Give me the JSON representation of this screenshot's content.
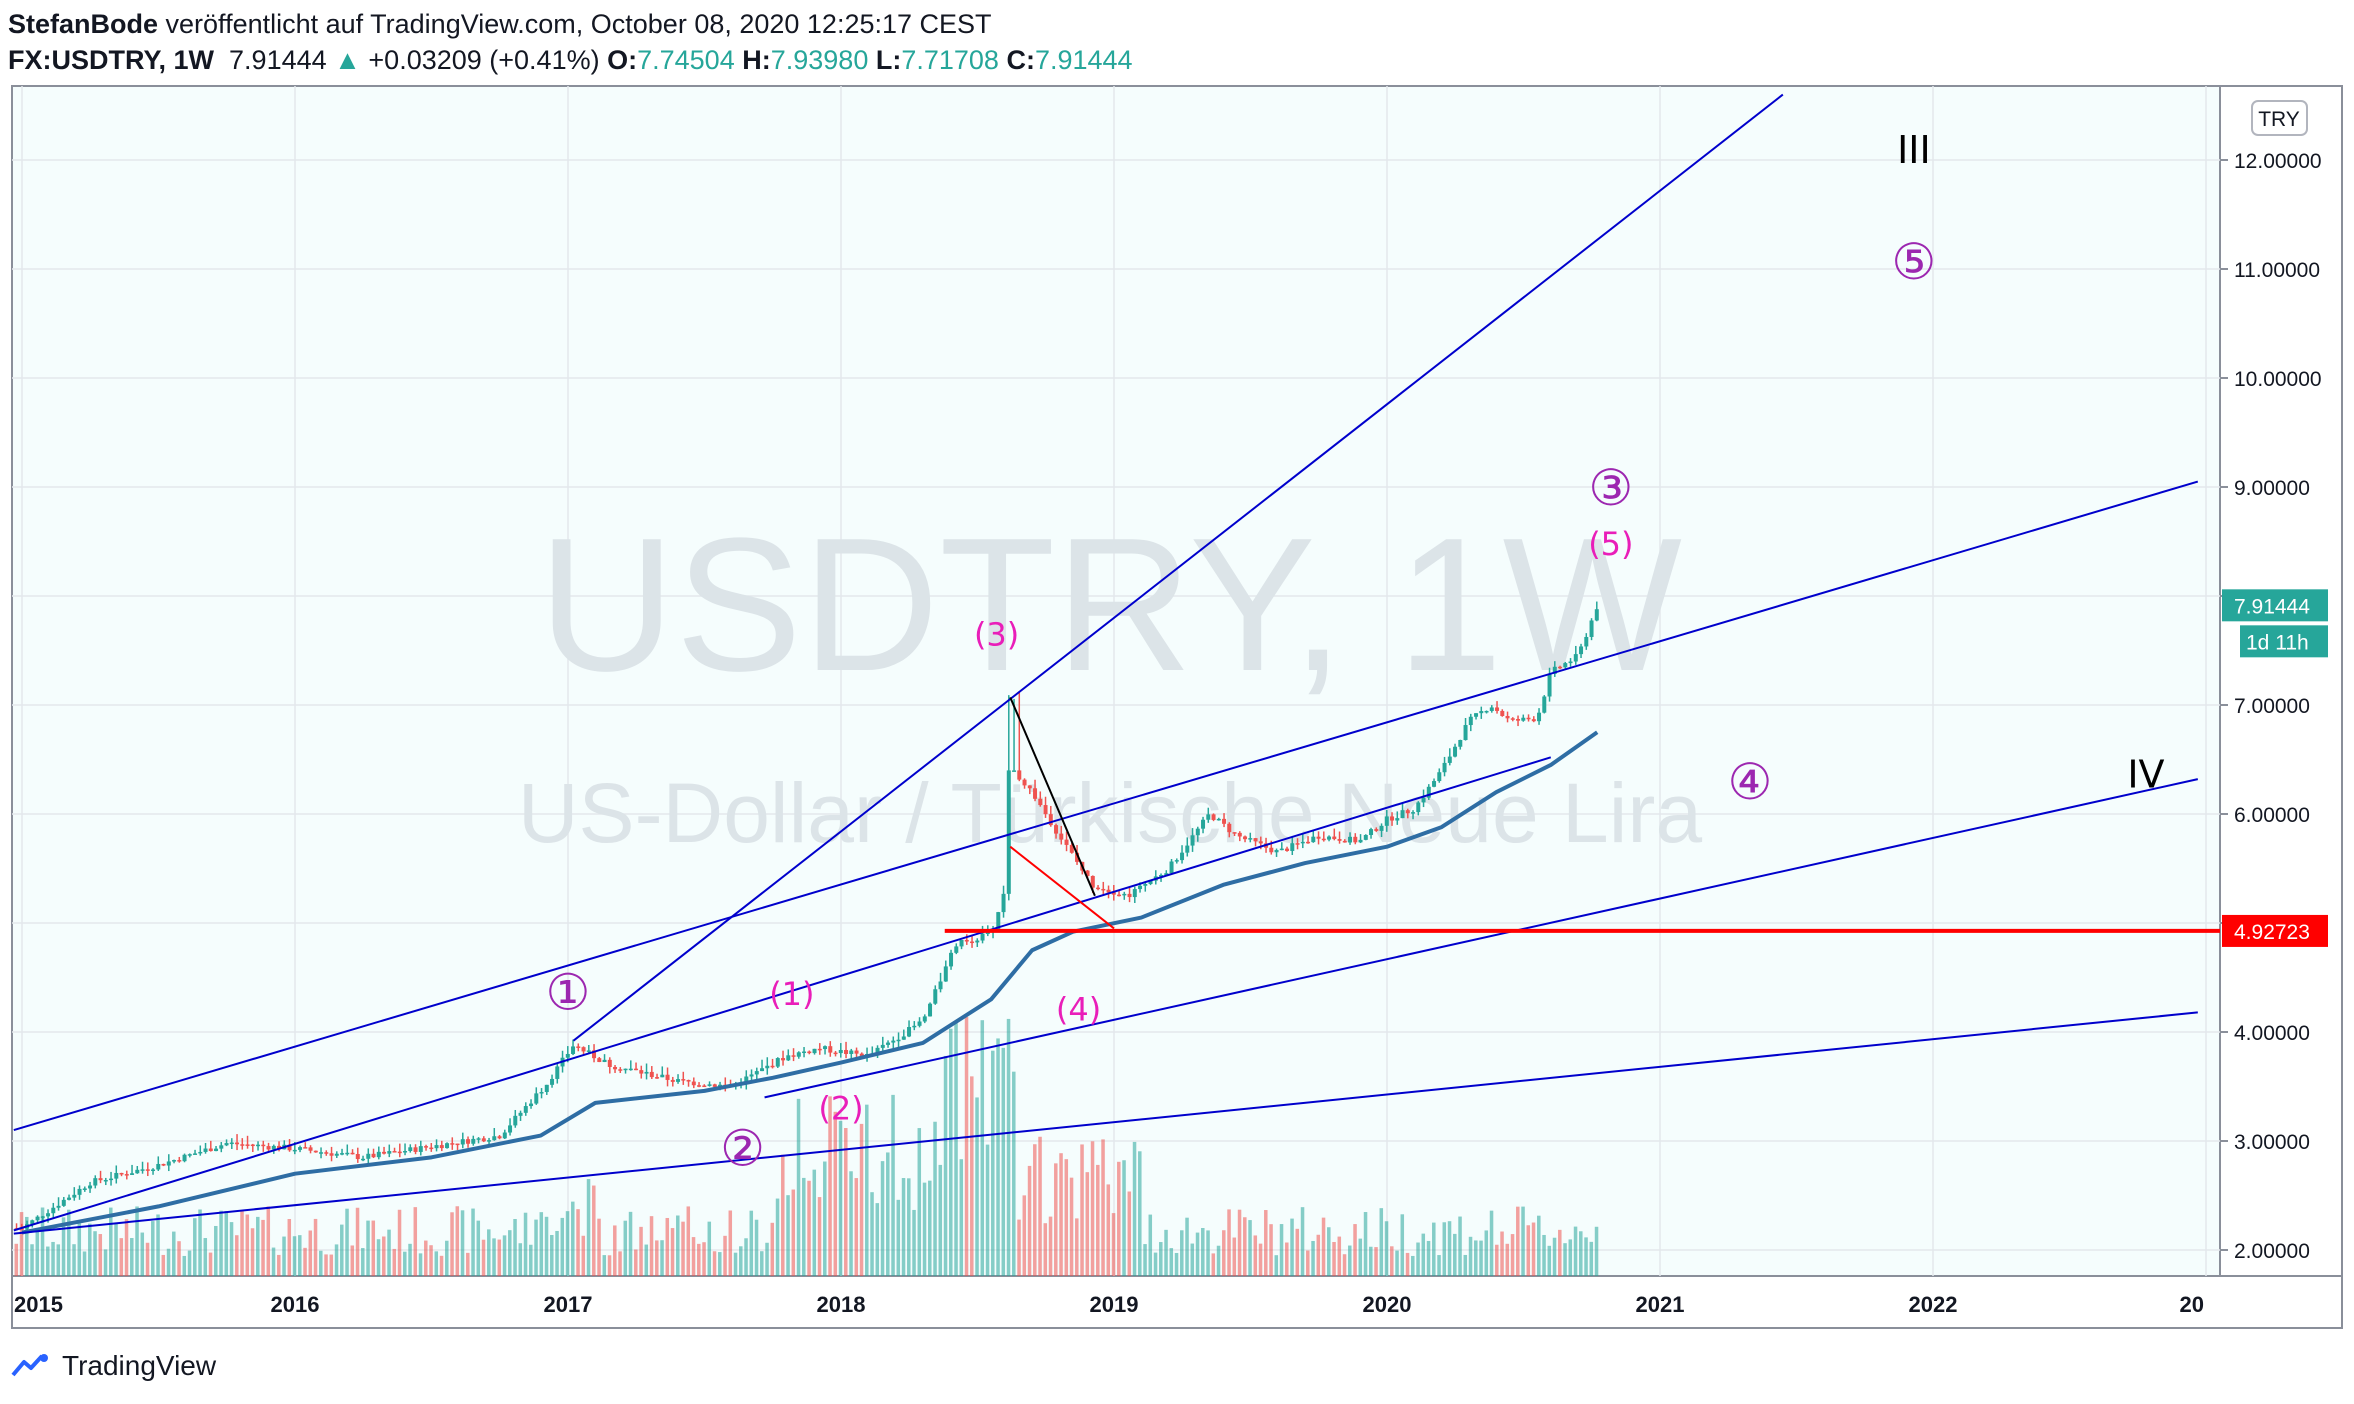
{
  "header": {
    "author": "StefanBode",
    "published": " veröffentlicht auf TradingView.com, October 08, 2020 12:25:17 CEST",
    "symbol": "FX:USDTRY, 1W",
    "last": "7.91444",
    "change": "+0.03209 (+0.41%)",
    "o_label": "O:",
    "o_value": "7.74504",
    "h_label": "H:",
    "h_value": "7.93980",
    "l_label": "L:",
    "l_value": "7.71708",
    "c_label": "C:",
    "c_value": "7.91444"
  },
  "watermark": {
    "line1": "USDTRY, 1W",
    "line2": "US-Dollar / Türkische Neue Lira"
  },
  "currency_badge": "TRY",
  "price_tag": {
    "value": "7.91444",
    "countdown": "1d 11h",
    "color": "#26a69a"
  },
  "level_tag": {
    "value": "4.92723",
    "color": "#ff0000"
  },
  "footer": {
    "brand": "TradingView"
  },
  "colors": {
    "up": "#26a69a",
    "down": "#ef5350",
    "ma": "#2e6da4",
    "trend": "#0000cc",
    "background": "#f5fdfd",
    "wave_primary": "#9c27b0",
    "wave_minor": "#e91eb9"
  },
  "chart_data": {
    "type": "candlestick",
    "title": "USDTRY, 1W",
    "x_ticks": [
      "2015",
      "2016",
      "2017",
      "2018",
      "2019",
      "2020",
      "2021",
      "2022",
      "20"
    ],
    "y_ticks": [
      "2.00000",
      "3.00000",
      "4.00000",
      "5.00000",
      "6.00000",
      "7.00000",
      "8.00000",
      "9.00000",
      "10.00000",
      "11.00000",
      "12.00000"
    ],
    "ylim": [
      1.8,
      12.6
    ],
    "grid": true,
    "price_path": [
      [
        2015.0,
        2.2
      ],
      [
        2015.25,
        2.62
      ],
      [
        2015.5,
        2.78
      ],
      [
        2015.75,
        2.98
      ],
      [
        2016.0,
        2.93
      ],
      [
        2016.25,
        2.85
      ],
      [
        2016.5,
        2.95
      ],
      [
        2016.75,
        3.05
      ],
      [
        2016.92,
        3.52
      ],
      [
        2017.02,
        3.88
      ],
      [
        2017.15,
        3.7
      ],
      [
        2017.4,
        3.55
      ],
      [
        2017.6,
        3.5
      ],
      [
        2017.8,
        3.78
      ],
      [
        2017.92,
        3.85
      ],
      [
        2018.1,
        3.78
      ],
      [
        2018.3,
        4.1
      ],
      [
        2018.42,
        4.8
      ],
      [
        2018.55,
        4.9
      ],
      [
        2018.6,
        5.3
      ],
      [
        2018.63,
        6.4
      ],
      [
        2018.7,
        6.2
      ],
      [
        2018.8,
        5.8
      ],
      [
        2018.92,
        5.35
      ],
      [
        2019.05,
        5.25
      ],
      [
        2019.2,
        5.5
      ],
      [
        2019.35,
        6.0
      ],
      [
        2019.45,
        5.8
      ],
      [
        2019.6,
        5.65
      ],
      [
        2019.75,
        5.8
      ],
      [
        2019.9,
        5.75
      ],
      [
        2020.0,
        5.95
      ],
      [
        2020.1,
        6.05
      ],
      [
        2020.2,
        6.4
      ],
      [
        2020.3,
        6.85
      ],
      [
        2020.38,
        7.0
      ],
      [
        2020.45,
        6.85
      ],
      [
        2020.55,
        6.88
      ],
      [
        2020.6,
        7.3
      ],
      [
        2020.7,
        7.45
      ],
      [
        2020.77,
        7.91
      ]
    ],
    "moving_average": [
      [
        2015.0,
        2.16
      ],
      [
        2015.5,
        2.4
      ],
      [
        2016.0,
        2.7
      ],
      [
        2016.5,
        2.85
      ],
      [
        2016.9,
        3.05
      ],
      [
        2017.1,
        3.35
      ],
      [
        2017.5,
        3.46
      ],
      [
        2017.75,
        3.58
      ],
      [
        2018.0,
        3.72
      ],
      [
        2018.3,
        3.9
      ],
      [
        2018.55,
        4.3
      ],
      [
        2018.7,
        4.75
      ],
      [
        2018.85,
        4.92
      ],
      [
        2019.1,
        5.05
      ],
      [
        2019.4,
        5.35
      ],
      [
        2019.7,
        5.55
      ],
      [
        2020.0,
        5.7
      ],
      [
        2020.2,
        5.88
      ],
      [
        2020.4,
        6.2
      ],
      [
        2020.6,
        6.45
      ],
      [
        2020.77,
        6.75
      ]
    ],
    "trend_lines": [
      [
        [
          2014.97,
          3.1
        ],
        [
          2022.97,
          9.05
        ]
      ],
      [
        [
          2014.97,
          2.15
        ],
        [
          2022.97,
          4.18
        ]
      ],
      [
        [
          2017.02,
          3.92
        ],
        [
          2021.45,
          12.6
        ]
      ],
      [
        [
          2017.72,
          3.4
        ],
        [
          2022.97,
          6.32
        ]
      ],
      [
        [
          2014.97,
          2.18
        ],
        [
          2020.6,
          6.52
        ]
      ]
    ],
    "horizontal_level": {
      "value": 4.92723,
      "from": 2018.38
    },
    "black_line": [
      [
        2018.62,
        7.07
      ],
      [
        2018.93,
        5.25
      ]
    ],
    "red_line": [
      [
        2018.62,
        5.7
      ],
      [
        2019.0,
        4.95
      ]
    ],
    "labels": [
      {
        "text": "①",
        "x": 2017.0,
        "y": 4.33,
        "kind": "primary"
      },
      {
        "text": "②",
        "x": 2017.64,
        "y": 2.9,
        "kind": "primary"
      },
      {
        "text": "③",
        "x": 2020.82,
        "y": 8.96,
        "kind": "primary"
      },
      {
        "text": "④",
        "x": 2021.33,
        "y": 6.26,
        "kind": "primary"
      },
      {
        "text": "⑤",
        "x": 2021.93,
        "y": 11.03,
        "kind": "primary"
      },
      {
        "text": "(1)",
        "x": 2017.82,
        "y": 4.33,
        "kind": "minor"
      },
      {
        "text": "(2)",
        "x": 2018.0,
        "y": 3.28,
        "kind": "minor"
      },
      {
        "text": "(3)",
        "x": 2018.57,
        "y": 7.63,
        "kind": "minor"
      },
      {
        "text": "(4)",
        "x": 2018.87,
        "y": 4.19,
        "kind": "minor"
      },
      {
        "text": "(5)",
        "x": 2020.82,
        "y": 8.46,
        "kind": "minor"
      },
      {
        "text": "III",
        "x": 2021.93,
        "y": 12.07,
        "kind": "major"
      },
      {
        "text": "IV",
        "x": 2022.78,
        "y": 6.34,
        "kind": "major"
      }
    ]
  }
}
